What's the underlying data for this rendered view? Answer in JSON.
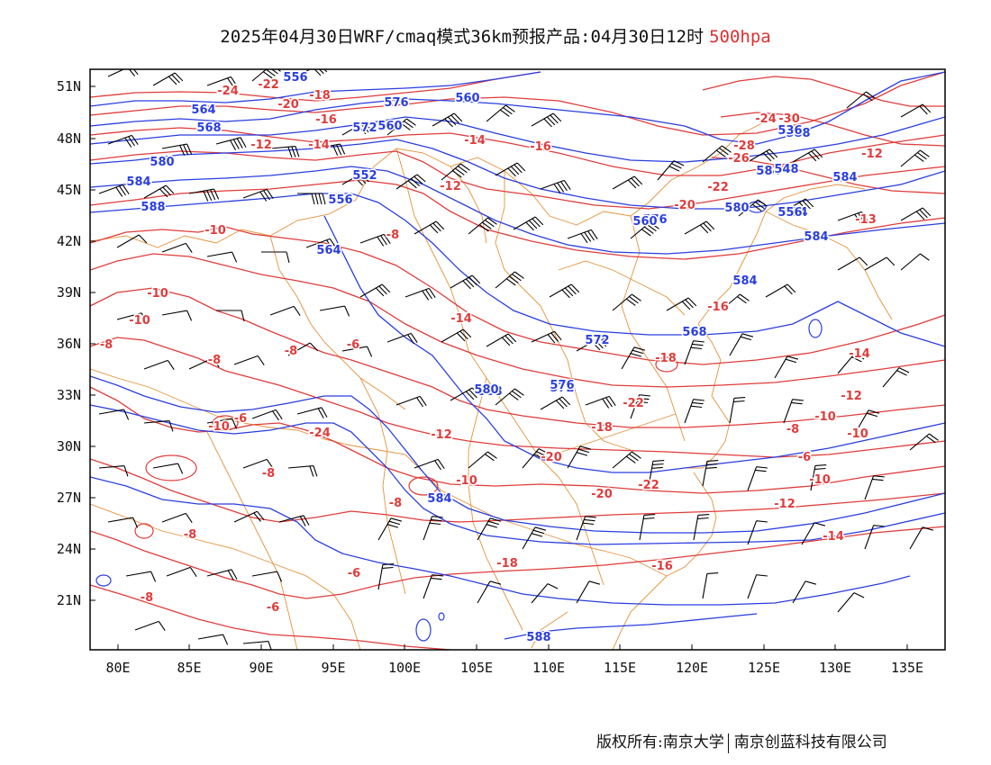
{
  "title": {
    "main": "2025年04月30日WRF/cmaq模式36km预报产品:04月30日12时",
    "level": "500hpa"
  },
  "axes": {
    "lat_labels": [
      "51N",
      "48N",
      "45N",
      "42N",
      "39N",
      "36N",
      "33N",
      "30N",
      "27N",
      "24N",
      "21N"
    ],
    "lon_labels": [
      "80E",
      "85E",
      "90E",
      "95E",
      "100E",
      "105E",
      "110E",
      "115E",
      "120E",
      "125E",
      "130E",
      "135E"
    ]
  },
  "colors": {
    "geopotential": "#2a3ee0",
    "temperature": "#e03c3c",
    "borders": "#e3923a",
    "wind": "#000000",
    "frame": "#000000"
  },
  "geopotential_labels": [
    "556",
    "560",
    "564",
    "568",
    "572",
    "576",
    "580",
    "584",
    "588",
    "556",
    "552",
    "560",
    "564",
    "568",
    "572",
    "576",
    "580",
    "584",
    "588",
    "584",
    "584",
    "584",
    "584",
    "580",
    "576",
    "536",
    "548",
    "556",
    "560",
    "568",
    "572",
    "576",
    "580",
    "584",
    "588"
  ],
  "temperature_labels": [
    "-24",
    "-22",
    "-20",
    "-18",
    "-16",
    "-14",
    "-12",
    "-14",
    "-12",
    "-10",
    "-10",
    "-10",
    "-8",
    "-8",
    "-8",
    "-6",
    "-8",
    "-6",
    "-10",
    "-8",
    "-8",
    "-6",
    "-6",
    "-8",
    "-10",
    "-12",
    "-14",
    "-16",
    "-18",
    "-20",
    "-22",
    "-24",
    "-26",
    "-28",
    "-30",
    "-22",
    "-20",
    "-18",
    "-16",
    "-14",
    "-12",
    "-10",
    "-8",
    "-6",
    "-10",
    "-12",
    "-14",
    "-16",
    "-18",
    "-20",
    "-22",
    "-24",
    "-13",
    "-12",
    "-10",
    "-8"
  ],
  "footer": {
    "copyright": "版权所有:南京大学",
    "company": "南京创蓝科技有限公司"
  }
}
